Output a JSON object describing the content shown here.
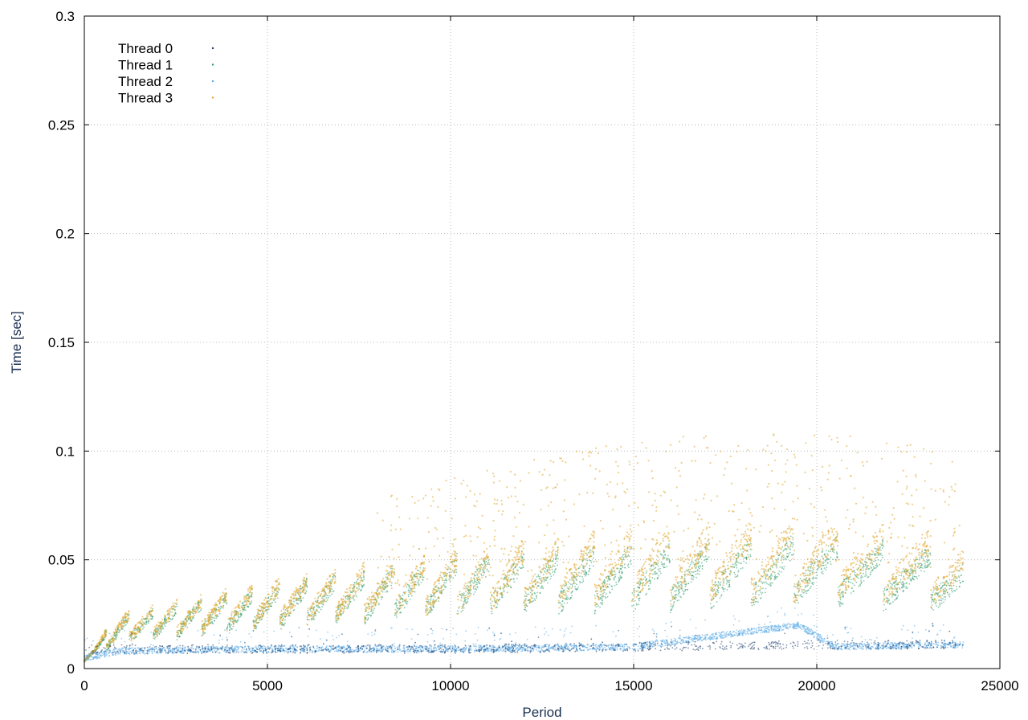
{
  "chart_data": {
    "type": "scatter",
    "title": "",
    "xlabel": "Period",
    "ylabel": "Time [sec]",
    "xlim": [
      0,
      25000
    ],
    "ylim": [
      0,
      0.3
    ],
    "x_ticks": [
      "0",
      "5000",
      "10000",
      "15000",
      "20000",
      "25000"
    ],
    "y_ticks": [
      "0",
      "0.05",
      "0.1",
      "0.15",
      "0.2",
      "0.25",
      "0.3"
    ],
    "grid": true,
    "legend_placement": "top-left",
    "series": [
      {
        "name": "Thread 0",
        "color": "#1f3f6e",
        "x": [
          5000,
          10000,
          15000,
          20000,
          24000
        ],
        "y": [
          0.009,
          0.009,
          0.01,
          0.011,
          0.011
        ]
      },
      {
        "name": "Thread 1",
        "color": "#2e9b6b",
        "x": [
          0,
          1000,
          5000,
          10000,
          15000,
          20000,
          24000
        ],
        "y": [
          0.005,
          0.018,
          0.028,
          0.038,
          0.042,
          0.045,
          0.04
        ]
      },
      {
        "name": "Thread 2",
        "color": "#5aa9e6",
        "x": [
          0,
          1000,
          5000,
          10000,
          15000,
          19500,
          20500,
          24000
        ],
        "y": [
          0.005,
          0.008,
          0.009,
          0.009,
          0.01,
          0.02,
          0.01,
          0.011
        ]
      },
      {
        "name": "Thread 3",
        "color": "#e0a82e",
        "x": [
          0,
          1000,
          5000,
          10000,
          15000,
          20000,
          24000
        ],
        "y": [
          0.005,
          0.019,
          0.03,
          0.04,
          0.048,
          0.05,
          0.045
        ]
      }
    ]
  }
}
